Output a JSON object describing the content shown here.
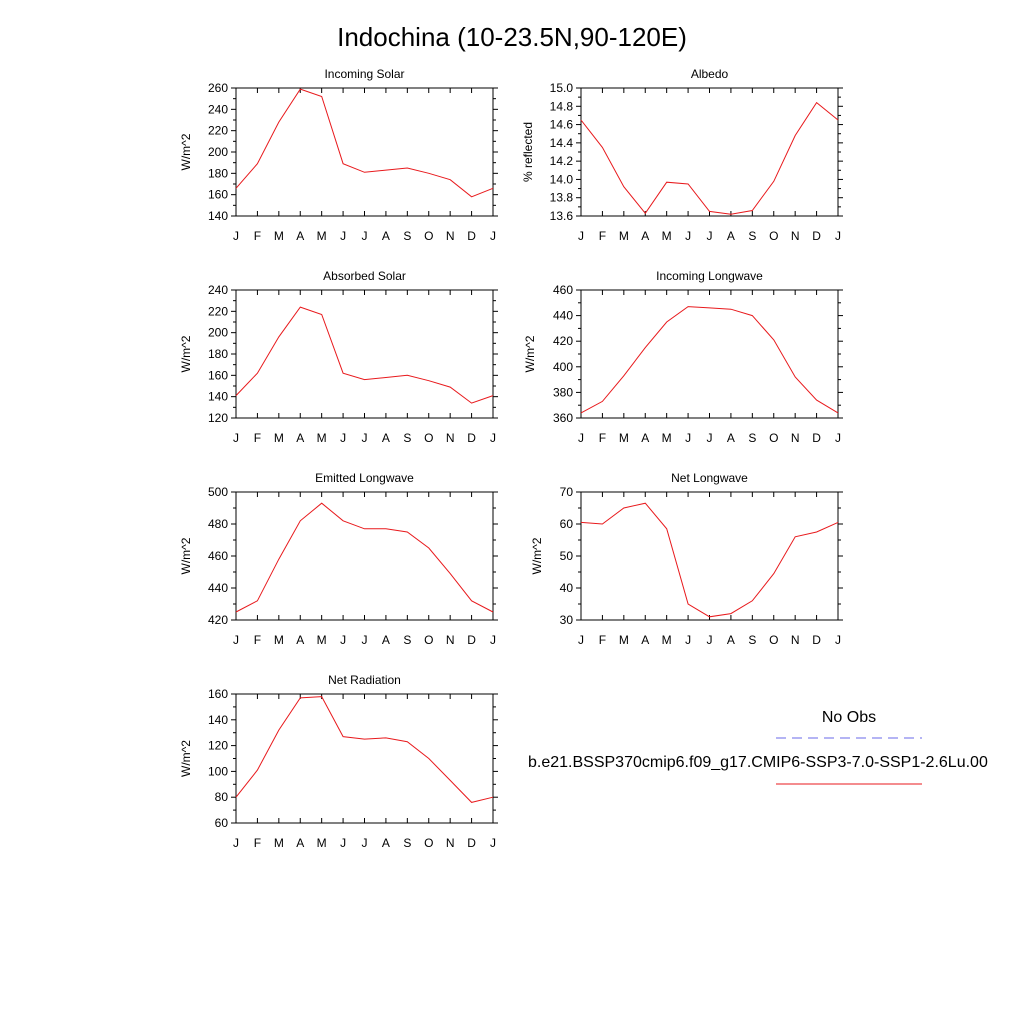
{
  "figure": {
    "title": "Indochina (10-23.5N,90-120E)"
  },
  "legend": {
    "obs_label": "No Obs",
    "obs_color": "#6a6ae8",
    "model_label": "b.e21.BSSP370cmip6.f09_g17.CMIP6-SSP3-7.0-SSP1-2.6Lu.00",
    "model_color": "#e8191c"
  },
  "chart_data": [
    {
      "type": "line",
      "title": "Incoming Solar",
      "ylabel": "W/m^2",
      "x": [
        "J",
        "F",
        "M",
        "A",
        "M",
        "J",
        "J",
        "A",
        "S",
        "O",
        "N",
        "D",
        "J"
      ],
      "ylim": [
        140,
        260
      ],
      "yticks": [
        140,
        160,
        180,
        200,
        220,
        240,
        260
      ],
      "ytick_labels": [
        "140",
        "160",
        "180",
        "200",
        "220",
        "240",
        "260"
      ],
      "series": [
        {
          "values": [
            166,
            189,
            228,
            259,
            252,
            189,
            181,
            183,
            185,
            180,
            174,
            158,
            166
          ]
        }
      ]
    },
    {
      "type": "line",
      "title": "Albedo",
      "ylabel": "% reflected",
      "x": [
        "J",
        "F",
        "M",
        "A",
        "M",
        "J",
        "J",
        "A",
        "S",
        "O",
        "N",
        "D",
        "J"
      ],
      "ylim": [
        13.6,
        15.0
      ],
      "yticks": [
        13.6,
        13.8,
        14.0,
        14.2,
        14.4,
        14.6,
        14.8,
        15.0
      ],
      "ytick_labels": [
        "13.6",
        "13.8",
        "14.0",
        "14.2",
        "14.4",
        "14.6",
        "14.8",
        "15.0"
      ],
      "series": [
        {
          "values": [
            14.65,
            14.35,
            13.92,
            13.63,
            13.97,
            13.95,
            13.65,
            13.62,
            13.66,
            13.98,
            14.48,
            14.84,
            14.65
          ]
        }
      ]
    },
    {
      "type": "line",
      "title": "Absorbed Solar",
      "ylabel": "W/m^2",
      "x": [
        "J",
        "F",
        "M",
        "A",
        "M",
        "J",
        "J",
        "A",
        "S",
        "O",
        "N",
        "D",
        "J"
      ],
      "ylim": [
        120,
        240
      ],
      "yticks": [
        120,
        140,
        160,
        180,
        200,
        220,
        240
      ],
      "ytick_labels": [
        "120",
        "140",
        "160",
        "180",
        "200",
        "220",
        "240"
      ],
      "series": [
        {
          "values": [
            141,
            162,
            196,
            224,
            217,
            162,
            156,
            158,
            160,
            155,
            149,
            134,
            141
          ]
        }
      ]
    },
    {
      "type": "line",
      "title": "Incoming Longwave",
      "ylabel": "W/m^2",
      "x": [
        "J",
        "F",
        "M",
        "A",
        "M",
        "J",
        "J",
        "A",
        "S",
        "O",
        "N",
        "D",
        "J"
      ],
      "ylim": [
        360,
        460
      ],
      "yticks": [
        360,
        380,
        400,
        420,
        440,
        460
      ],
      "ytick_labels": [
        "360",
        "380",
        "400",
        "420",
        "440",
        "460"
      ],
      "series": [
        {
          "values": [
            364,
            373,
            393,
            415,
            435,
            447,
            446,
            445,
            440,
            421,
            392,
            374,
            364
          ]
        }
      ]
    },
    {
      "type": "line",
      "title": "Emitted Longwave",
      "ylabel": "W/m^2",
      "x": [
        "J",
        "F",
        "M",
        "A",
        "M",
        "J",
        "J",
        "A",
        "S",
        "O",
        "N",
        "D",
        "J"
      ],
      "ylim": [
        420,
        500
      ],
      "yticks": [
        420,
        440,
        460,
        480,
        500
      ],
      "ytick_labels": [
        "420",
        "440",
        "460",
        "480",
        "500"
      ],
      "series": [
        {
          "values": [
            425,
            432,
            458,
            482,
            493,
            482,
            477,
            477,
            475,
            465,
            449,
            432,
            425
          ]
        }
      ]
    },
    {
      "type": "line",
      "title": "Net Longwave",
      "ylabel": "W/m^2",
      "x": [
        "J",
        "F",
        "M",
        "A",
        "M",
        "J",
        "J",
        "A",
        "S",
        "O",
        "N",
        "D",
        "J"
      ],
      "ylim": [
        30,
        70
      ],
      "yticks": [
        30,
        40,
        50,
        60,
        70
      ],
      "ytick_labels": [
        "30",
        "40",
        "50",
        "60",
        "70"
      ],
      "series": [
        {
          "values": [
            60.5,
            60,
            65,
            66.5,
            58.5,
            35,
            31,
            32,
            36,
            44.5,
            56,
            57.5,
            60.5
          ]
        }
      ]
    },
    {
      "type": "line",
      "title": "Net Radiation",
      "ylabel": "W/m^2",
      "x": [
        "J",
        "F",
        "M",
        "A",
        "M",
        "J",
        "J",
        "A",
        "S",
        "O",
        "N",
        "D",
        "J"
      ],
      "ylim": [
        60,
        160
      ],
      "yticks": [
        60,
        80,
        100,
        120,
        140,
        160
      ],
      "ytick_labels": [
        "60",
        "80",
        "100",
        "120",
        "140",
        "160"
      ],
      "series": [
        {
          "values": [
            80,
            101,
            132,
            157,
            158,
            127,
            125,
            126,
            123,
            110,
            93,
            76,
            80
          ]
        }
      ]
    }
  ]
}
